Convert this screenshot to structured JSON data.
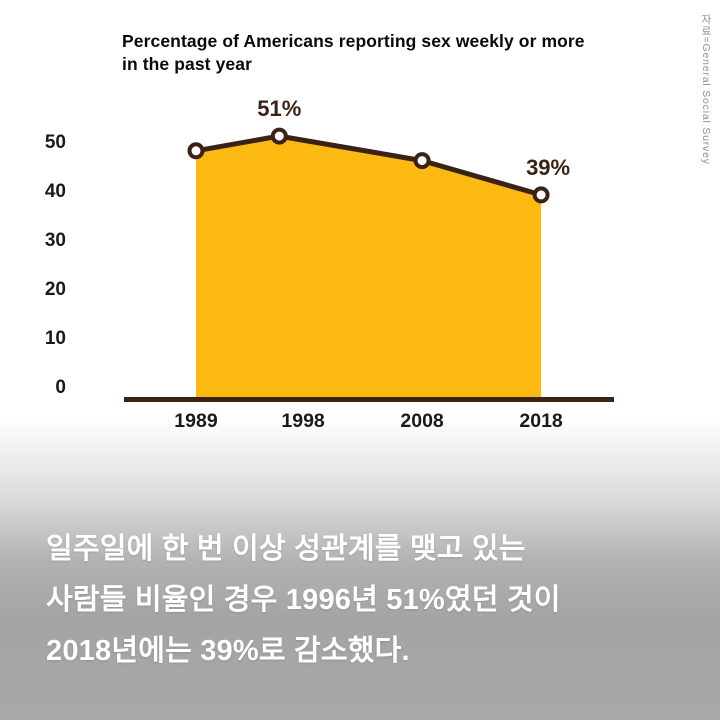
{
  "chart_data": {
    "type": "area",
    "title": "Percentage of Americans reporting sex weekly or more in the past year",
    "title_lines": [
      "Percentage of Americans reporting sex weekly or more",
      "in the past year"
    ],
    "x": [
      1989,
      1996,
      2008,
      2018
    ],
    "values": [
      48,
      51,
      46,
      39
    ],
    "xticks": [
      1989,
      1998,
      2008,
      2018
    ],
    "yticks": [
      0,
      10,
      20,
      30,
      40,
      50
    ],
    "ylim": [
      0,
      55
    ],
    "xlabel": "",
    "ylabel": "",
    "grid": false,
    "legend": "none",
    "annotations": [
      {
        "x": 1996,
        "label": "51%"
      },
      {
        "x": 2018,
        "label": "39%"
      }
    ],
    "fill_color": "#FBB911",
    "line_color": "#3A2315",
    "marker_fill": "#FFFFFF",
    "tick_color": "#1a1a1a"
  },
  "source_note": "자료=General Social Survey",
  "caption": {
    "lines": [
      "일주일에 한 번 이상 성관계를 맺고 있는",
      "사람들 비율인 경우 1996년 51%였던 것이",
      "2018년에는 39%로 감소했다."
    ],
    "text_color": "#FFFFFF"
  },
  "background": {
    "top_color": "#FFFFFF",
    "bottom_color": "#A8A8A8"
  }
}
